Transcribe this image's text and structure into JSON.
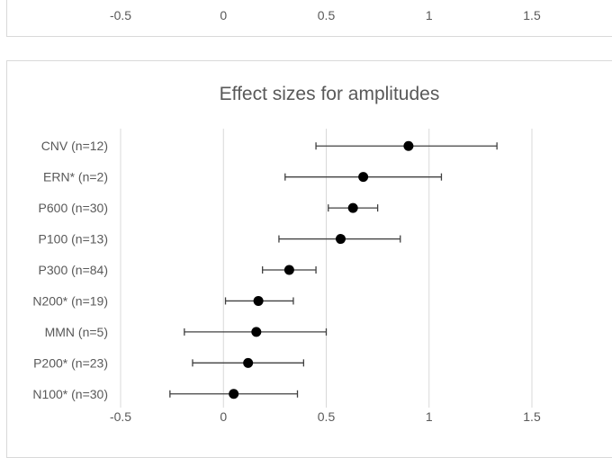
{
  "top_axis": {
    "ticks": [
      "-0.5",
      "0",
      "0.5",
      "1",
      "1.5"
    ],
    "values": [
      -0.5,
      0,
      0.5,
      1,
      1.5
    ]
  },
  "chart_data": {
    "type": "scatter",
    "title": "Effect sizes for amplitudes",
    "xlim": [
      -0.5,
      1.5
    ],
    "x_ticks": [
      -0.5,
      0,
      0.5,
      1,
      1.5
    ],
    "x_tick_labels": [
      "-0.5",
      "0",
      "0.5",
      "1",
      "1.5"
    ],
    "grid": "vertical",
    "categories": [
      "CNV (n=12)",
      "ERN* (n=2)",
      "P600 (n=30)",
      "P100 (n=13)",
      "P300 (n=84)",
      "N200* (n=19)",
      "MMN (n=5)",
      "P200* (n=23)",
      "N100* (n=30)"
    ],
    "series": [
      {
        "values": [
          0.9,
          0.68,
          0.63,
          0.57,
          0.32,
          0.17,
          0.16,
          0.12,
          0.05
        ],
        "ci_low": [
          0.45,
          0.3,
          0.51,
          0.27,
          0.19,
          0.01,
          -0.19,
          -0.15,
          -0.26
        ],
        "ci_high": [
          1.33,
          1.06,
          0.75,
          0.86,
          0.45,
          0.34,
          0.5,
          0.39,
          0.36
        ],
        "color": "#000000",
        "error_color": "#404040"
      }
    ]
  }
}
